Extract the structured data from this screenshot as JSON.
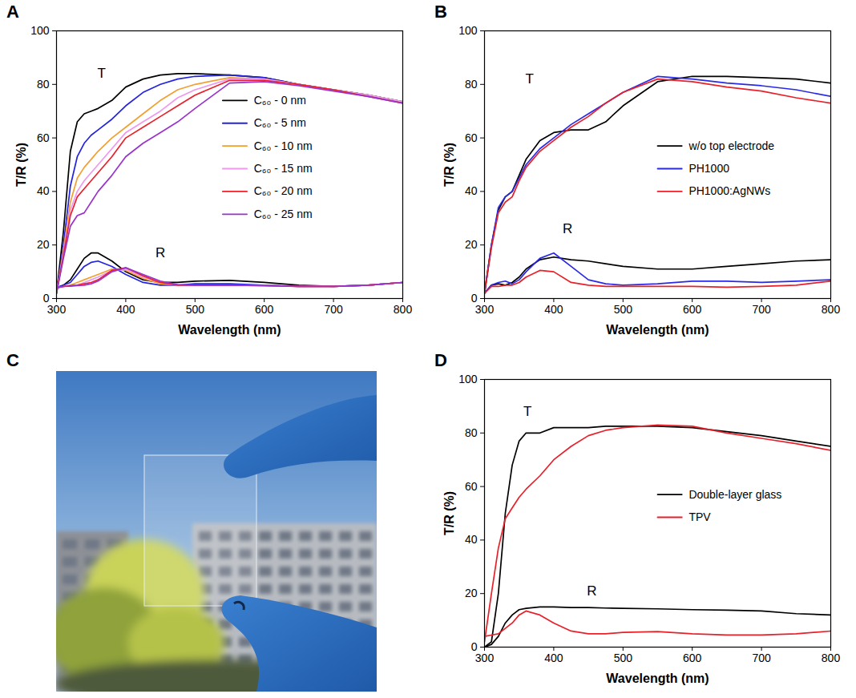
{
  "chart_data": [
    {
      "type": "line",
      "panel": "A",
      "x_label": "Wavelength (nm)",
      "y_label": "T/R (%)",
      "xlim": [
        300,
        800
      ],
      "xticks": [
        300,
        400,
        500,
        600,
        700,
        800
      ],
      "ylim": [
        0,
        100
      ],
      "yticks": [
        0,
        20,
        40,
        60,
        80,
        100
      ],
      "grid": false,
      "legend": "right",
      "x": [
        300,
        310,
        320,
        330,
        340,
        350,
        360,
        380,
        400,
        425,
        450,
        475,
        500,
        550,
        600,
        650,
        700,
        750,
        800
      ],
      "series": [
        {
          "name": "C₆₀ - 0 nm",
          "color": "#000000",
          "values": [
            2,
            25,
            55,
            66,
            69,
            70,
            71,
            74,
            79,
            82,
            83.5,
            84,
            84,
            83.5,
            82.5,
            80,
            78,
            76,
            73.5
          ],
          "reflectance_values": [
            4,
            5,
            7,
            11,
            15,
            17,
            17,
            14,
            10,
            7,
            6,
            6,
            6.5,
            6.8,
            6,
            5,
            4.5,
            5,
            6
          ]
        },
        {
          "name": "C₆₀ - 5 nm",
          "color": "#2323e0",
          "values": [
            2,
            20,
            42,
            53,
            58,
            61,
            63,
            67,
            72,
            77,
            80,
            82,
            83,
            83.5,
            82.5,
            80,
            78,
            76,
            73.5
          ],
          "reflectance_values": [
            4,
            5,
            6,
            9,
            12,
            13.5,
            14,
            12,
            9,
            6,
            5,
            5,
            5.5,
            5.5,
            5,
            4.5,
            4.5,
            5,
            6
          ]
        },
        {
          "name": "C₆₀ - 10 nm",
          "color": "#f0a030",
          "values": [
            2,
            18,
            36,
            45,
            49,
            52,
            55,
            60,
            64,
            69,
            74,
            78,
            80,
            82.5,
            82,
            80,
            78,
            76,
            73.5
          ],
          "reflectance_values": [
            4,
            4.5,
            5,
            6,
            7,
            8,
            9,
            11,
            10.5,
            7.5,
            5.5,
            5,
            5,
            5,
            4.8,
            4.5,
            4.5,
            5,
            6
          ]
        },
        {
          "name": "C₆₀ - 15 nm",
          "color": "#ee99ee",
          "values": [
            2,
            17,
            33,
            40,
            44,
            47,
            50,
            56,
            62,
            66,
            70,
            75,
            78,
            82,
            82,
            80,
            78,
            76,
            73.5
          ],
          "reflectance_values": [
            4,
            4.5,
            4.8,
            5,
            6,
            7,
            8,
            10.5,
            11,
            8,
            6,
            5,
            5,
            5,
            4.8,
            4.5,
            4.5,
            5,
            6
          ]
        },
        {
          "name": "C₆₀ - 20 nm",
          "color": "#e8202a",
          "values": [
            2,
            16,
            31,
            38,
            41,
            44,
            47,
            53,
            60,
            64,
            68,
            72,
            76,
            81.5,
            81.5,
            80,
            78,
            75.5,
            73
          ],
          "reflectance_values": [
            4,
            4.5,
            4.8,
            5,
            5.5,
            6,
            7,
            10.5,
            11.5,
            8.5,
            6,
            5,
            5,
            5,
            4.8,
            4.5,
            4.5,
            5,
            6
          ]
        },
        {
          "name": "C₆₀ - 25 nm",
          "color": "#9933cc",
          "values": [
            2,
            15,
            27,
            31,
            32,
            36,
            40,
            46,
            53,
            58,
            62,
            66,
            71,
            80.5,
            81,
            79.5,
            77.5,
            75.5,
            73
          ],
          "reflectance_values": [
            4,
            4.5,
            4.6,
            4.8,
            5,
            5.5,
            6.5,
            10,
            11.5,
            9,
            6.5,
            5.2,
            5,
            5,
            4.8,
            4.5,
            4.5,
            5,
            6
          ]
        }
      ],
      "annotations": [
        {
          "text": "T",
          "x": 365,
          "y": 84
        },
        {
          "text": "R",
          "x": 450,
          "y": 17
        }
      ]
    },
    {
      "type": "line",
      "panel": "B",
      "x_label": "Wavelength (nm)",
      "y_label": "T/R (%)",
      "xlim": [
        300,
        800
      ],
      "xticks": [
        300,
        400,
        500,
        600,
        700,
        800
      ],
      "ylim": [
        0,
        100
      ],
      "yticks": [
        0,
        20,
        40,
        60,
        80,
        100
      ],
      "grid": false,
      "legend": "right",
      "x": [
        300,
        310,
        320,
        330,
        340,
        350,
        360,
        380,
        400,
        425,
        450,
        475,
        500,
        550,
        600,
        650,
        700,
        750,
        800
      ],
      "series": [
        {
          "name": "w/o top electrode",
          "color": "#000000",
          "values": [
            2,
            20,
            33,
            38,
            40,
            46,
            52,
            59,
            62,
            63,
            63,
            66,
            72,
            81,
            83,
            83,
            82.5,
            82,
            80.5
          ],
          "reflectance_values": [
            2,
            5,
            5.5,
            5,
            6,
            8,
            11,
            14.5,
            15.5,
            14.5,
            14,
            13,
            12,
            11,
            11,
            12,
            13,
            14,
            14.5
          ]
        },
        {
          "name": "PH1000",
          "color": "#2a2ae6",
          "values": [
            2,
            20,
            34,
            38,
            40,
            45,
            50,
            56,
            60,
            65,
            69,
            73,
            77,
            83,
            82,
            80.5,
            79.5,
            78,
            75.5
          ],
          "reflectance_values": [
            2,
            5,
            6,
            6.5,
            5.5,
            7,
            10,
            15,
            17,
            12,
            7,
            5.5,
            5,
            5.5,
            6.5,
            6.5,
            6,
            6.5,
            7
          ]
        },
        {
          "name": "PH1000:AgNWs",
          "color": "#e8202a",
          "values": [
            2,
            19,
            32,
            36,
            38,
            44,
            49,
            55,
            59,
            64,
            68,
            73,
            77,
            82,
            81,
            79,
            77.5,
            75,
            73
          ],
          "reflectance_values": [
            2,
            4.5,
            4.5,
            5,
            5,
            6,
            8,
            10.5,
            10,
            6,
            5,
            4.5,
            4.5,
            4.5,
            4.5,
            4.2,
            4.5,
            5,
            6.5
          ]
        }
      ],
      "annotations": [
        {
          "text": "T",
          "x": 365,
          "y": 82
        },
        {
          "text": "R",
          "x": 420,
          "y": 26
        }
      ]
    },
    {
      "type": "line",
      "panel": "D",
      "x_label": "Wavelength (nm)",
      "y_label": "T/R (%)",
      "xlim": [
        300,
        800
      ],
      "xticks": [
        300,
        400,
        500,
        600,
        700,
        800
      ],
      "ylim": [
        0,
        100
      ],
      "yticks": [
        0,
        20,
        40,
        60,
        80,
        100
      ],
      "grid": false,
      "legend": "right",
      "x": [
        300,
        310,
        320,
        330,
        340,
        350,
        360,
        380,
        400,
        425,
        450,
        475,
        500,
        550,
        600,
        650,
        700,
        750,
        800
      ],
      "series": [
        {
          "name": "Double-layer glass",
          "color": "#000000",
          "values": [
            0,
            2,
            20,
            50,
            68,
            77,
            80,
            80,
            82,
            82,
            82,
            82.5,
            82.5,
            82.5,
            82,
            80.5,
            79,
            77,
            75
          ],
          "reflectance_values": [
            0,
            1,
            4,
            9,
            12,
            14,
            14.5,
            15,
            15,
            14.8,
            14.8,
            14.6,
            14.5,
            14.3,
            14,
            13.8,
            13.5,
            12.5,
            12
          ]
        },
        {
          "name": "TPV",
          "color": "#e8202a",
          "values": [
            2,
            20,
            37,
            48,
            52,
            56,
            59,
            64,
            70,
            75,
            79,
            81,
            82,
            83,
            82.5,
            80,
            78,
            76,
            73.5
          ],
          "reflectance_values": [
            4,
            4.5,
            5,
            7,
            9,
            12,
            13.5,
            12,
            9,
            6,
            5,
            5,
            5.5,
            5.8,
            5,
            4.5,
            4.5,
            5,
            6
          ]
        }
      ],
      "annotations": [
        {
          "text": "T",
          "x": 362,
          "y": 88
        },
        {
          "text": "R",
          "x": 455,
          "y": 21
        }
      ]
    }
  ],
  "photo": {
    "panel": "C"
  }
}
